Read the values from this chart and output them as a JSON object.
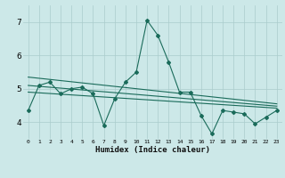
{
  "xlabel": "Humidex (Indice chaleur)",
  "bg_color": "#cce8e8",
  "line_color": "#1a6b5a",
  "grid_color": "#aacccc",
  "xlim": [
    -0.5,
    23.5
  ],
  "ylim": [
    3.5,
    7.5
  ],
  "yticks": [
    4,
    5,
    6,
    7
  ],
  "xtick_labels": [
    "0",
    "1",
    "2",
    "3",
    "4",
    "5",
    "6",
    "7",
    "8",
    "9",
    "10",
    "11",
    "12",
    "13",
    "14",
    "15",
    "16",
    "17",
    "18",
    "19",
    "20",
    "21",
    "22",
    "23"
  ],
  "main_x": [
    0,
    1,
    2,
    3,
    4,
    5,
    6,
    7,
    8,
    9,
    10,
    11,
    12,
    13,
    14,
    15,
    16,
    17,
    18,
    19,
    20,
    21,
    22,
    23
  ],
  "main_y": [
    4.35,
    5.1,
    5.2,
    4.85,
    5.0,
    5.05,
    4.85,
    3.9,
    4.7,
    5.2,
    5.5,
    7.05,
    6.6,
    5.8,
    4.9,
    4.9,
    4.2,
    3.65,
    4.35,
    4.3,
    4.25,
    3.95,
    4.15,
    4.35
  ],
  "trend1_x": [
    0,
    23
  ],
  "trend1_y": [
    5.35,
    4.55
  ],
  "trend2_x": [
    0,
    23
  ],
  "trend2_y": [
    4.9,
    4.42
  ],
  "trend3_x": [
    0,
    23
  ],
  "trend3_y": [
    5.1,
    4.48
  ]
}
